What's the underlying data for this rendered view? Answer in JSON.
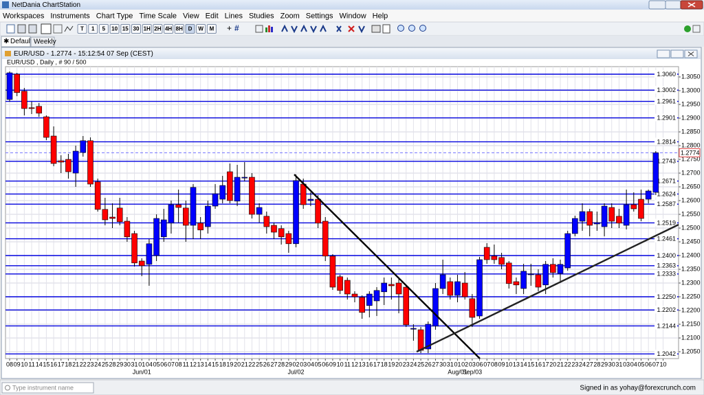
{
  "app": {
    "title": "NetDania ChartStation",
    "menu": [
      "Workspaces",
      "Instruments",
      "Chart Type",
      "Time Scale",
      "View",
      "Edit",
      "Lines",
      "Studies",
      "Zoom",
      "Settings",
      "Window",
      "Help"
    ],
    "toolbar_buttons": [
      "T",
      "1",
      "5",
      "10",
      "15",
      "30",
      "1H",
      "2H",
      "4H",
      "8H",
      "D",
      "W",
      "M"
    ],
    "tabs": [
      "Default",
      "Weekly"
    ],
    "window_title": "EUR/USD - 1.2774 - 15:12:54  07 Sep (CEST)",
    "search_placeholder": "Type instrument name",
    "status": "Signed in as yohay@forexcrunch.com"
  },
  "chart_data": {
    "type": "candlestick",
    "subtitle": "EUR/USD , Daily , # 90 / 500",
    "categories": [
      "08",
      "09",
      "10",
      "11",
      "14",
      "15",
      "16",
      "17",
      "18",
      "21",
      "22",
      "23",
      "24",
      "25",
      "28",
      "29",
      "30",
      "31",
      "01",
      "04",
      "05",
      "06",
      "07",
      "08",
      "11",
      "12",
      "13",
      "14",
      "15",
      "18",
      "19",
      "20",
      "21",
      "22",
      "25",
      "26",
      "27",
      "28",
      "29",
      "02",
      "03",
      "04",
      "05",
      "06",
      "09",
      "10",
      "11",
      "12",
      "13",
      "16",
      "17",
      "18",
      "19",
      "20",
      "23",
      "24",
      "25",
      "26",
      "27",
      "30",
      "31",
      "01",
      "02",
      "03",
      "06",
      "07",
      "08",
      "09",
      "10",
      "13",
      "14",
      "15",
      "16",
      "17",
      "20",
      "21",
      "22",
      "23",
      "24",
      "27",
      "28",
      "29",
      "30",
      "31",
      "03",
      "04",
      "05",
      "06",
      "07",
      "10"
    ],
    "x_major_labels": [
      "Jun/01",
      "Jul/02",
      "Aug/01",
      "Sep/03"
    ],
    "open": [
      1.2968,
      1.306,
      1.2998,
      1.2938,
      1.2943,
      1.2905,
      1.2835,
      1.2745,
      1.275,
      1.27,
      1.2775,
      1.2818,
      1.2668,
      1.2568,
      1.254,
      1.2573,
      1.2525,
      1.248,
      1.238,
      1.2368,
      1.24,
      1.2468,
      1.2518,
      1.2585,
      1.2573,
      1.251,
      1.2518,
      1.2505,
      1.258,
      1.2605,
      1.2705,
      1.2598,
      1.2683,
      1.2685,
      1.255,
      1.2543,
      1.251,
      1.2498,
      1.248,
      1.2443,
      1.266,
      1.26,
      1.2605,
      1.2525,
      1.2398,
      1.2323,
      1.231,
      1.226,
      1.2248,
      1.2218,
      1.2235,
      1.2268,
      1.2295,
      1.23,
      1.2285,
      1.2135,
      1.213,
      1.206,
      1.2143,
      1.228,
      1.2305,
      1.2255,
      1.23,
      1.2243,
      1.218,
      1.243,
      1.2398,
      1.2393,
      1.2373,
      1.2305,
      1.228,
      1.233,
      1.233,
      1.2293,
      1.2368,
      1.2335,
      1.2355,
      1.248,
      1.2525,
      1.256,
      1.2515,
      1.2505,
      1.2575,
      1.2543,
      1.251,
      1.2585,
      1.2605,
      1.2605,
      1.263,
      null
    ],
    "high": [
      1.307,
      1.3065,
      1.301,
      1.296,
      1.2955,
      1.291,
      1.287,
      1.2765,
      1.277,
      1.28,
      1.2835,
      1.283,
      1.268,
      1.261,
      1.259,
      1.261,
      1.254,
      1.249,
      1.239,
      1.246,
      1.255,
      1.257,
      1.26,
      1.264,
      1.26,
      1.266,
      1.254,
      1.26,
      1.266,
      1.269,
      1.2735,
      1.273,
      1.274,
      1.27,
      1.259,
      1.256,
      1.252,
      1.251,
      1.249,
      1.2695,
      1.268,
      1.263,
      1.262,
      1.254,
      1.2405,
      1.233,
      1.232,
      1.227,
      1.2255,
      1.227,
      1.2285,
      1.232,
      1.232,
      1.232,
      1.229,
      1.215,
      1.214,
      1.216,
      1.23,
      1.2385,
      1.232,
      1.233,
      1.234,
      1.226,
      1.2395,
      1.2445,
      1.244,
      1.241,
      1.238,
      1.232,
      1.237,
      1.237,
      1.235,
      1.238,
      1.239,
      1.2385,
      1.249,
      1.2545,
      1.259,
      1.257,
      1.256,
      1.259,
      1.259,
      1.257,
      1.264,
      1.263,
      1.264,
      1.264,
      1.278,
      null
    ],
    "low": [
      1.296,
      1.298,
      1.291,
      1.2915,
      1.2905,
      1.282,
      1.2725,
      1.27,
      1.268,
      1.265,
      1.276,
      1.265,
      1.256,
      1.251,
      1.25,
      1.251,
      1.245,
      1.236,
      1.2325,
      1.229,
      1.238,
      1.245,
      1.248,
      1.252,
      1.245,
      1.246,
      1.246,
      1.248,
      1.257,
      1.259,
      1.259,
      1.258,
      1.267,
      1.2535,
      1.252,
      1.248,
      1.246,
      1.244,
      1.241,
      1.243,
      1.257,
      1.258,
      1.25,
      1.238,
      1.2275,
      1.226,
      1.224,
      1.223,
      1.217,
      1.2175,
      1.218,
      1.222,
      1.224,
      1.219,
      1.214,
      1.209,
      1.2045,
      1.2045,
      1.213,
      1.226,
      1.224,
      1.223,
      1.224,
      1.214,
      1.217,
      1.237,
      1.237,
      1.235,
      1.228,
      1.226,
      1.226,
      1.229,
      1.227,
      1.226,
      1.232,
      1.23,
      1.2345,
      1.247,
      1.249,
      1.247,
      1.249,
      1.247,
      1.25,
      1.25,
      1.2495,
      1.256,
      1.2525,
      1.259,
      1.262,
      null
    ],
    "close": [
      1.3065,
      1.2993,
      1.2935,
      1.2935,
      1.2918,
      1.283,
      1.2735,
      1.274,
      1.2705,
      1.278,
      1.2818,
      1.266,
      1.2568,
      1.253,
      1.2535,
      1.2523,
      1.2468,
      1.2373,
      1.2363,
      1.2443,
      1.2535,
      1.253,
      1.2585,
      1.2575,
      1.251,
      1.2648,
      1.2493,
      1.258,
      1.2625,
      1.2655,
      1.26,
      1.2685,
      1.2685,
      1.255,
      1.2575,
      1.2505,
      1.2485,
      1.2468,
      1.2443,
      1.2673,
      1.2585,
      1.2605,
      1.2518,
      1.2398,
      1.2285,
      1.2273,
      1.226,
      1.225,
      1.2193,
      1.226,
      1.2273,
      1.23,
      1.229,
      1.226,
      1.2148,
      1.2135,
      1.2055,
      1.215,
      1.228,
      1.233,
      1.2255,
      1.2305,
      1.225,
      1.2175,
      1.2385,
      1.2385,
      1.2385,
      1.2368,
      1.2298,
      1.2293,
      1.2343,
      1.2333,
      1.2285,
      1.2368,
      1.2338,
      1.2368,
      1.248,
      1.2535,
      1.256,
      1.251,
      1.252,
      1.258,
      1.2525,
      1.2518,
      1.2585,
      1.257,
      1.2535,
      1.2635,
      1.2774,
      null
    ],
    "up_color": "#0000ff",
    "down_color": "#ff0000",
    "level_color": "#0000dd",
    "ylim": [
      1.2025,
      1.30875
    ],
    "yticks": [
      {
        "value": 1.205,
        "label": "1.2050"
      },
      {
        "value": 1.21,
        "label": "1.2100"
      },
      {
        "value": 1.215,
        "label": "1.2150"
      },
      {
        "value": 1.22,
        "label": "1.2200"
      },
      {
        "value": 1.225,
        "label": "1.2250"
      },
      {
        "value": 1.23,
        "label": "1.2300"
      },
      {
        "value": 1.235,
        "label": "1.2350"
      },
      {
        "value": 1.24,
        "label": "1.2400"
      },
      {
        "value": 1.245,
        "label": "1.2450"
      },
      {
        "value": 1.25,
        "label": "1.2500"
      },
      {
        "value": 1.255,
        "label": "1.2550"
      },
      {
        "value": 1.26,
        "label": "1.2600"
      },
      {
        "value": 1.265,
        "label": "1.2650"
      },
      {
        "value": 1.27,
        "label": "1.2700"
      },
      {
        "value": 1.275,
        "label": "1.2750"
      },
      {
        "value": 1.28,
        "label": "1.2800"
      },
      {
        "value": 1.285,
        "label": "1.2850"
      },
      {
        "value": 1.29,
        "label": "1.2900"
      },
      {
        "value": 1.295,
        "label": "1.2950"
      },
      {
        "value": 1.3,
        "label": "1.3000"
      },
      {
        "value": 1.305,
        "label": "1.3050"
      }
    ],
    "levels": [
      {
        "value": 1.306,
        "label": "1.3060"
      },
      1.3002,
      1.2961,
      1.2901,
      1.2814,
      1.2743,
      1.2671,
      1.2624,
      1.2587,
      1.2519,
      1.2461,
      {
        "value": 1.24,
        "label": "1.2400"
      },
      1.2363,
      1.2333,
      {
        "value": 1.225,
        "label": "1.2250"
      },
      1.2202,
      1.2144,
      1.2042
    ],
    "last_price": 1.2774,
    "grid": true
  }
}
